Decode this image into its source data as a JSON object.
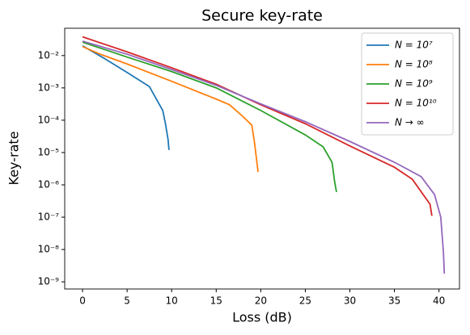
{
  "chart_data": {
    "type": "line",
    "title": "Secure key-rate",
    "x_label": "Loss (dB)",
    "y_label": "Key-rate",
    "log_y": true,
    "legend": "upper right",
    "xlim": [
      -2,
      42.3
    ],
    "ylim": [
      6e-10,
      0.07
    ],
    "xticks": [
      0,
      5,
      10,
      15,
      20,
      25,
      30,
      35,
      40
    ],
    "yticks": [
      {
        "value": 1e-09,
        "label": "10⁻⁹"
      },
      {
        "value": 1e-08,
        "label": "10⁻⁸"
      },
      {
        "value": 1e-07,
        "label": "10⁻⁷"
      },
      {
        "value": 1e-06,
        "label": "10⁻⁶"
      },
      {
        "value": 1e-05,
        "label": "10⁻⁵"
      },
      {
        "value": 0.0001,
        "label": "10⁻⁴"
      },
      {
        "value": 0.001,
        "label": "10⁻³"
      },
      {
        "value": 0.01,
        "label": "10⁻²"
      }
    ],
    "series": [
      {
        "name": "N = 10⁷",
        "color": "#1f77b4",
        "x": [
          0,
          2.5,
          5,
          7.5,
          9,
          9.3,
          9.6,
          9.7
        ],
        "values": [
          0.02,
          0.008,
          0.003,
          0.0011,
          0.0002,
          8e-05,
          2.5e-05,
          1.2e-05
        ]
      },
      {
        "name": "N = 10⁸",
        "color": "#ff7f0e",
        "x": [
          0,
          2,
          5,
          10,
          15,
          16.5,
          18,
          19,
          19.3,
          19.7
        ],
        "values": [
          0.019,
          0.011,
          0.0055,
          0.0016,
          0.00045,
          0.0003,
          0.00013,
          7e-05,
          2e-05,
          2.5e-06
        ]
      },
      {
        "name": "N = 10⁹",
        "color": "#2ca02c",
        "x": [
          0,
          5,
          10,
          15,
          20,
          25,
          27,
          28,
          28.3,
          28.5
        ],
        "values": [
          0.026,
          0.009,
          0.0032,
          0.001,
          0.0002,
          3.5e-05,
          1.5e-05,
          5e-06,
          1.2e-06,
          6e-07
        ]
      },
      {
        "name": "N = 10¹⁰",
        "color": "#d62728",
        "x": [
          0,
          5,
          10,
          15,
          20,
          25,
          30,
          35,
          37,
          39,
          39.2
        ],
        "values": [
          0.038,
          0.013,
          0.0042,
          0.0013,
          0.0003,
          7.8e-05,
          1.6e-05,
          3.5e-06,
          1.5e-06,
          2.5e-07,
          1.1e-07
        ]
      },
      {
        "name": "N → ∞",
        "color": "#9467bd",
        "x": [
          0,
          5,
          10,
          15,
          20,
          25,
          30,
          35,
          38,
          39.5,
          40.2,
          40.5,
          40.6
        ],
        "values": [
          0.028,
          0.011,
          0.0037,
          0.0012,
          0.00032,
          9e-05,
          2.2e-05,
          5e-06,
          1.8e-06,
          5e-07,
          1e-07,
          8e-09,
          1.8e-09
        ]
      }
    ]
  }
}
